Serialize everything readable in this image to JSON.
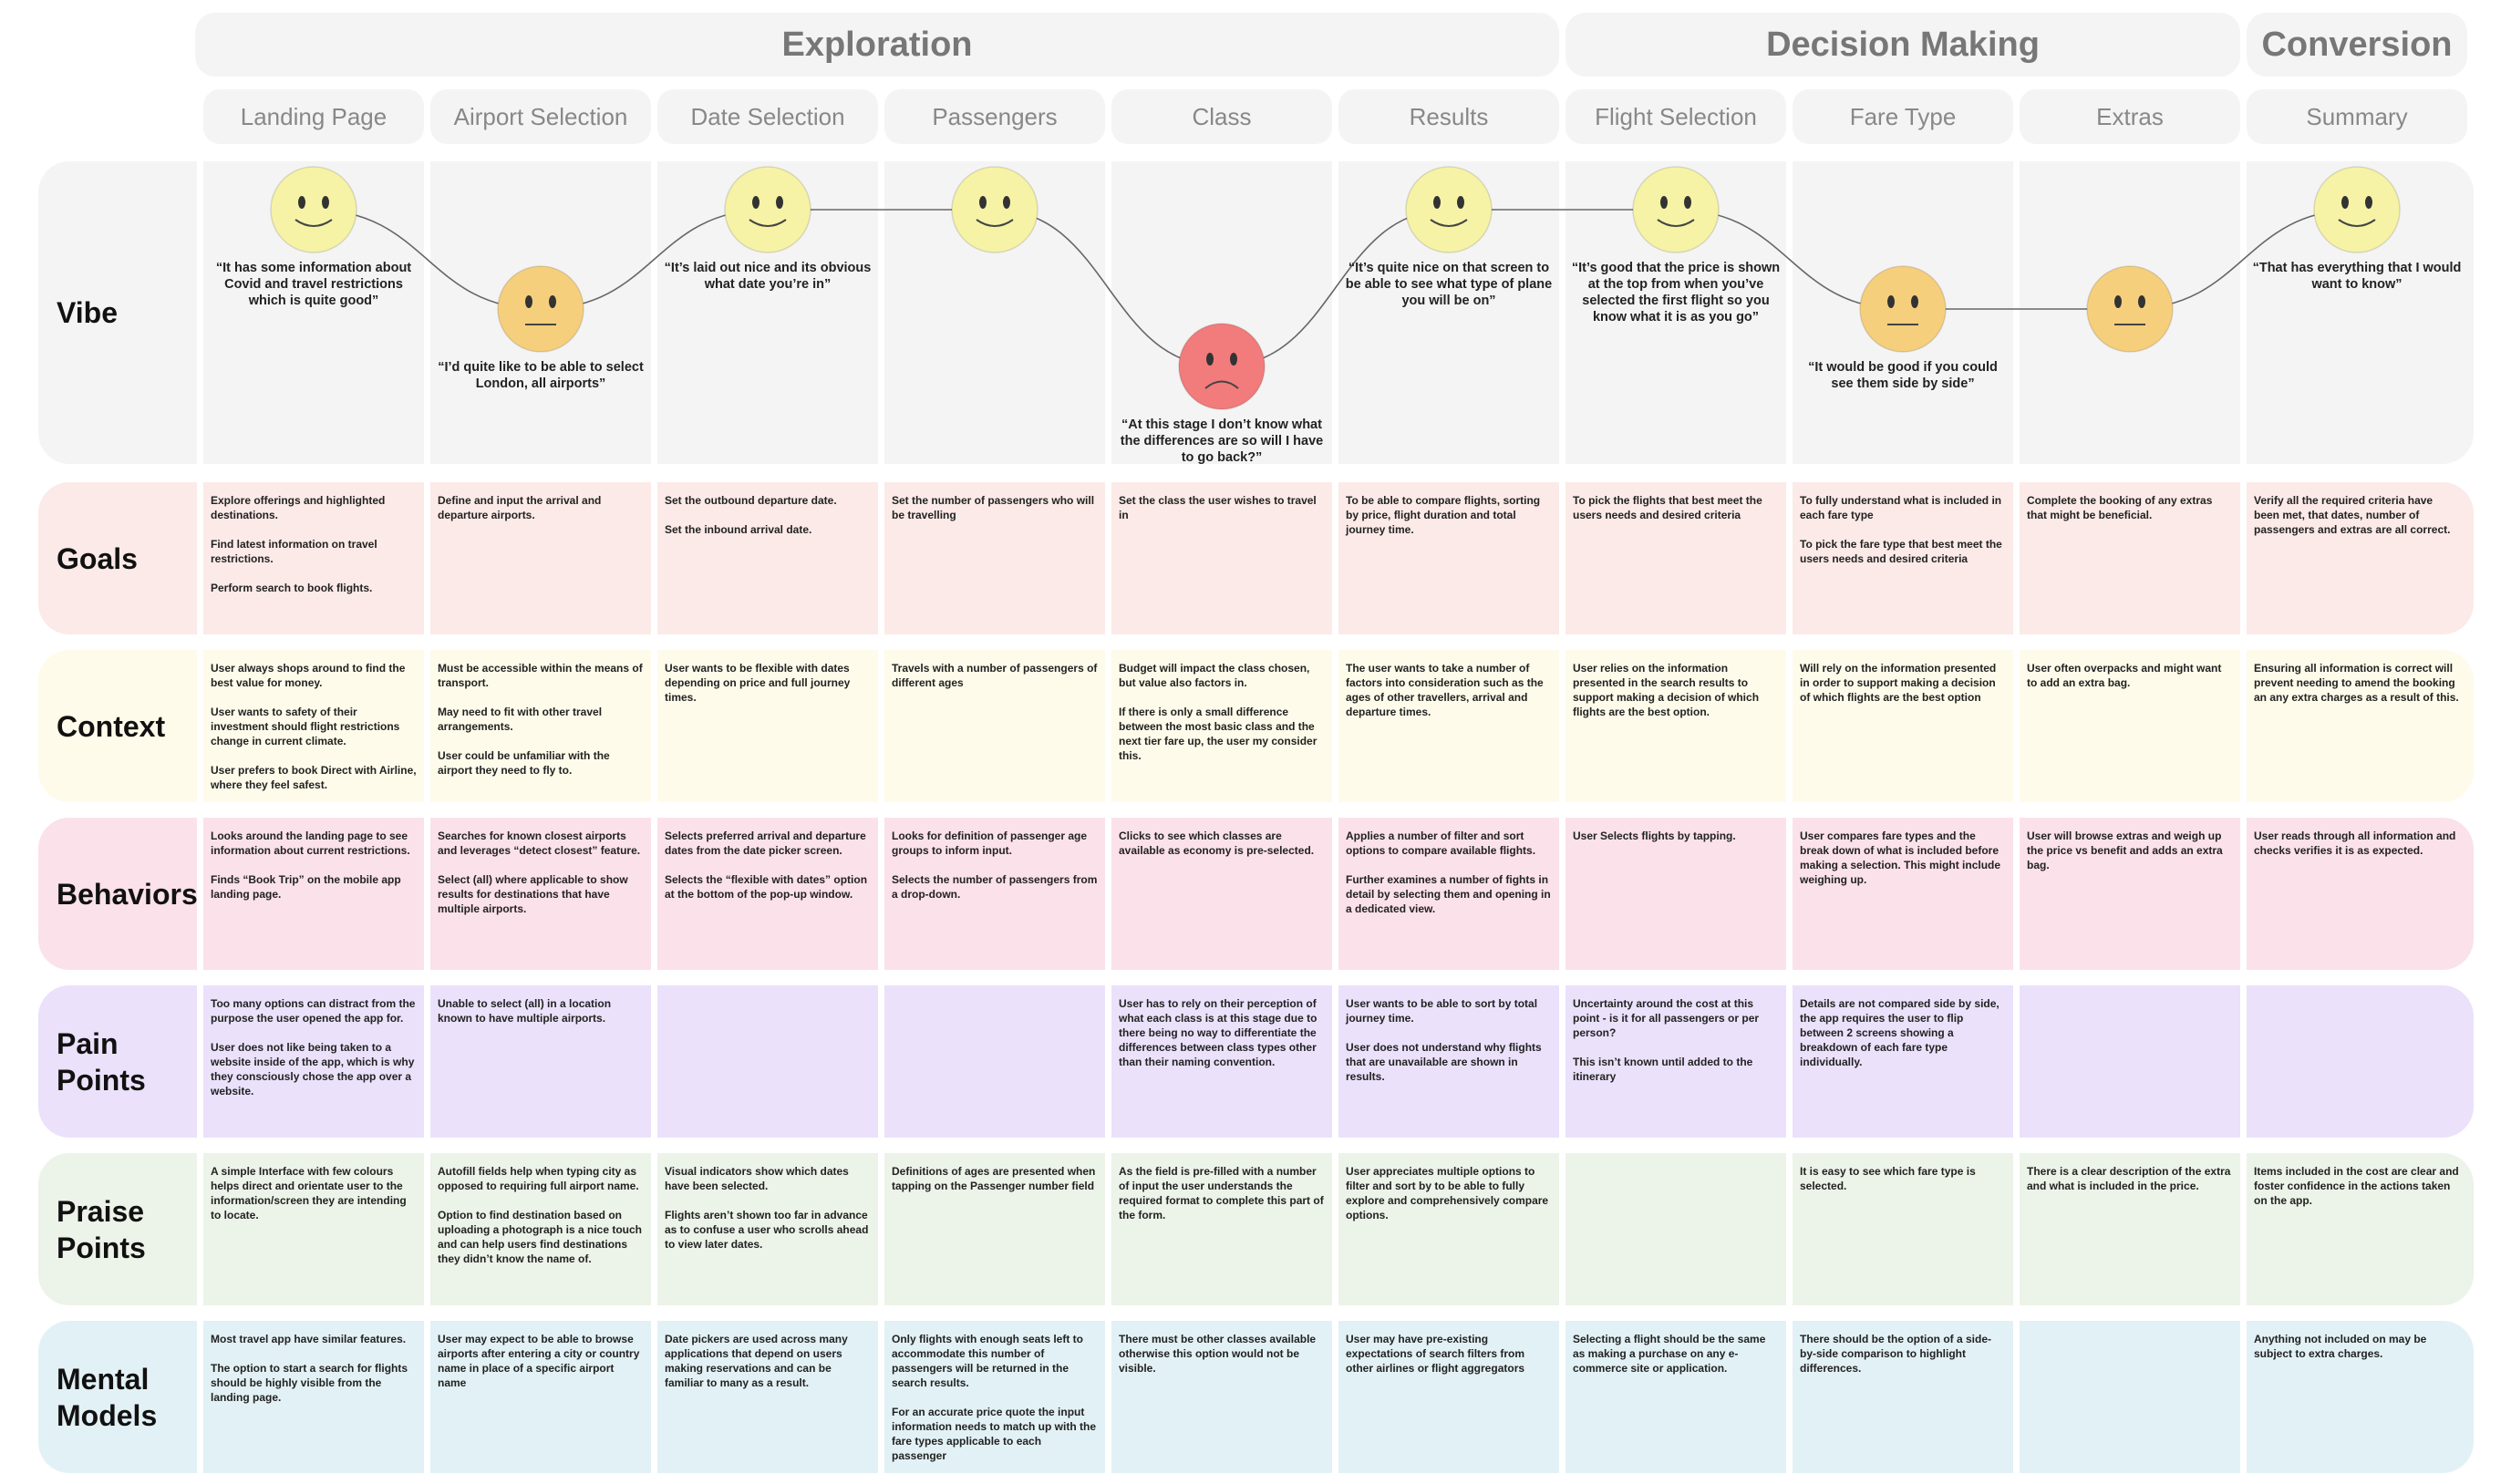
{
  "phases": [
    {
      "title": "Exploration",
      "stages": [
        "Landing Page",
        "Airport Selection",
        "Date Selection",
        "Passengers",
        "Class",
        "Results"
      ]
    },
    {
      "title": "Decision Making",
      "stages": [
        "Flight Selection",
        "Fare Type",
        "Extras"
      ]
    },
    {
      "title": "Conversion",
      "stages": [
        "Summary"
      ]
    }
  ],
  "vibe": {
    "label": "Vibe",
    "color": "#f4f4f4",
    "cells": [
      {
        "mood": "happy",
        "color": "#f6f3a6",
        "quote": "“It has some information about Covid and travel restrictions which is quite good”"
      },
      {
        "mood": "neutral",
        "color": "#f6cf7d",
        "quote": "“I’d quite like to be able to select London, all airports”"
      },
      {
        "mood": "happy",
        "color": "#f6f3a6",
        "quote": "“It’s laid out nice and its obvious what date you’re in”"
      },
      {
        "mood": "happy",
        "color": "#f6f3a6"
      },
      {
        "mood": "sad",
        "color": "#f27b7b",
        "quote": "“At this stage I don’t know what the differences are so will I have to go back?”"
      },
      {
        "mood": "happy",
        "color": "#f6f3a6",
        "quote": "“It’s quite nice on that screen to be able to see what type of plane you will be on”"
      },
      {
        "mood": "happy",
        "color": "#f6f3a6",
        "quote": "“It’s good that the price is shown at the top from when you’ve selected the first flight so you know what it is as you go”"
      },
      {
        "mood": "neutral",
        "color": "#f6cf7d",
        "quote": "“It would be good if you could see them side by side”"
      },
      {
        "mood": "neutral",
        "color": "#f6cf7d"
      },
      {
        "mood": "happy",
        "color": "#f6f3a6",
        "quote": "“That has everything that I would want to know”"
      }
    ]
  },
  "rows": [
    {
      "label": "Goals",
      "color": "#fbeae7",
      "cells": [
        [
          "Explore offerings and highlighted destinations.",
          "Find latest information on travel restrictions.",
          "Perform search to book flights."
        ],
        [
          "Define and input the arrival and departure airports."
        ],
        [
          "Set the outbound departure date.",
          "Set the inbound arrival date."
        ],
        [
          "Set the number of passengers who will be travelling"
        ],
        [
          "Set the class the user wishes to travel in"
        ],
        [
          "To be able to compare flights, sorting by price, flight duration and total journey time."
        ],
        [
          "To pick the flights that best meet the users needs and desired criteria"
        ],
        [
          "To fully understand what is included in each fare type",
          "To pick the fare type that best meet the users needs and desired criteria"
        ],
        [
          "Complete the booking of any extras that might be beneficial."
        ],
        [
          "Verify all the required criteria have been met, that dates, number of passengers and extras are all correct."
        ]
      ]
    },
    {
      "label": "Context",
      "color": "#fefbea",
      "cells": [
        [
          "User always shops around to find the best value for money.",
          "User wants to safety of their investment should flight restrictions change in current climate.",
          "User prefers to book Direct with Airline, where they feel safest."
        ],
        [
          "Must be accessible within the means of transport.",
          "May need to fit with other travel arrangements.",
          "User could be unfamiliar with the airport they need to fly to."
        ],
        [
          "User wants to be flexible with dates depending on price and full journey times."
        ],
        [
          "Travels with a number of passengers of different ages"
        ],
        [
          "Budget will impact the class chosen, but value also factors in.",
          "If there is only a small difference between the most basic class and the next tier fare up, the user my consider this."
        ],
        [
          "The user wants to take a number of factors into consideration such as the ages of other travellers, arrival and departure times."
        ],
        [
          "User relies on the information presented in the search results to support making a decision of which flights are the best option."
        ],
        [
          "Will rely on the information presented in order to support making a decision of which flights are the best option"
        ],
        [
          "User often overpacks and might want to add an extra bag."
        ],
        [
          "Ensuring all information is correct will prevent needing to amend the booking an any extra charges as a result of this."
        ]
      ]
    },
    {
      "label": "Behaviors",
      "color": "#fbe1ea",
      "cells": [
        [
          "Looks around the landing page to see information about current restrictions.",
          "Finds “Book Trip” on the mobile app landing page."
        ],
        [
          "Searches for known closest airports and leverages “detect closest” feature.",
          "Select (all) where applicable to show results for destinations that have multiple airports."
        ],
        [
          "Selects preferred arrival and departure dates from the date picker screen.",
          "Selects the “flexible with dates” option at the bottom of the pop-up window."
        ],
        [
          "Looks for definition of passenger age groups to inform input.",
          "Selects the number of passengers from a drop-down."
        ],
        [
          "Clicks to see which classes are available as economy is pre-selected."
        ],
        [
          "Applies a number of filter and sort options to compare available flights.",
          "Further examines a number of fights in detail by selecting them and opening in a dedicated view."
        ],
        [
          "User Selects flights by tapping."
        ],
        [
          "User compares fare types and the break down of what is included before making a selection. This might include weighing up."
        ],
        [
          "User will browse extras and weigh up the price vs benefit and adds an extra bag."
        ],
        [
          "User reads through all information and checks verifies it is as expected."
        ]
      ]
    },
    {
      "label": "Pain Points",
      "color": "#ebe1fb",
      "cells": [
        [
          "Too many options can distract from the purpose the user opened the app for.",
          "User does not like being taken to a website inside of the app, which is why they consciously chose the app over a website."
        ],
        [
          "Unable to select (all) in a location known to have multiple airports."
        ],
        [],
        [],
        [
          "User has to rely on their perception of what each class is at this stage due to there being no way to differentiate the differences between class types other than their naming convention."
        ],
        [
          "User wants to be able to sort by total journey time.",
          "User does not understand why flights that are unavailable are shown in results."
        ],
        [
          "Uncertainty around the cost at this point - is it for all passengers or per person?",
          "This isn’t known until added to the itinerary"
        ],
        [
          "Details are not compared side by side, the app requires the user to flip between 2 screens showing a breakdown of each fare type individually."
        ],
        [],
        []
      ]
    },
    {
      "label": "Praise Points",
      "color": "#ecf3e8",
      "cells": [
        [
          "A simple Interface with few colours helps direct and orientate user to the information/screen they are intending to locate."
        ],
        [
          "Autofill fields help when typing city as opposed to requiring full airport name.",
          "Option to find destination based on uploading a photograph is a nice touch and can help users find destinations they didn’t know the name of."
        ],
        [
          "Visual indicators show which dates have been selected.",
          "Flights aren’t shown too far in advance as to confuse a user who scrolls ahead to view later dates."
        ],
        [
          "Definitions of ages are presented when tapping on the Passenger number field"
        ],
        [
          "As the field is pre-filled with a number of input the user understands the required format to complete this part of the form."
        ],
        [
          "User appreciates multiple options to filter and sort by to be able to fully explore and comprehensively compare options."
        ],
        [],
        [
          "It is easy to see which fare type is selected."
        ],
        [
          "There is a clear description of the extra and what is included in the price."
        ],
        [
          "Items included in the cost are clear and foster confidence in the actions taken on the app."
        ]
      ]
    },
    {
      "label": "Mental Models",
      "color": "#e2f1f5",
      "cells": [
        [
          "Most travel app have similar features.",
          "The option to start a search for flights should be highly visible from the landing page."
        ],
        [
          "User may expect to be able to browse airports after entering a city or country name in place of a specific airport name"
        ],
        [
          "Date pickers are used across many applications that depend on users making reservations and can be familiar to many as a result."
        ],
        [
          "Only flights with enough seats left to accommodate this number of passengers will be returned in the search results.",
          "For an accurate price quote the input information needs to match up with the fare types applicable to each passenger"
        ],
        [
          "There must be other classes available otherwise this option would not be visible."
        ],
        [
          "User may have pre-existing expectations of search filters from other airlines or flight aggregators"
        ],
        [
          "Selecting a flight should be the same as making a purchase on any e-commerce site or application."
        ],
        [
          "There should be the option of a side-by-side comparison to highlight differences."
        ],
        [],
        [
          "Anything not included on may be subject to extra charges."
        ]
      ]
    }
  ]
}
